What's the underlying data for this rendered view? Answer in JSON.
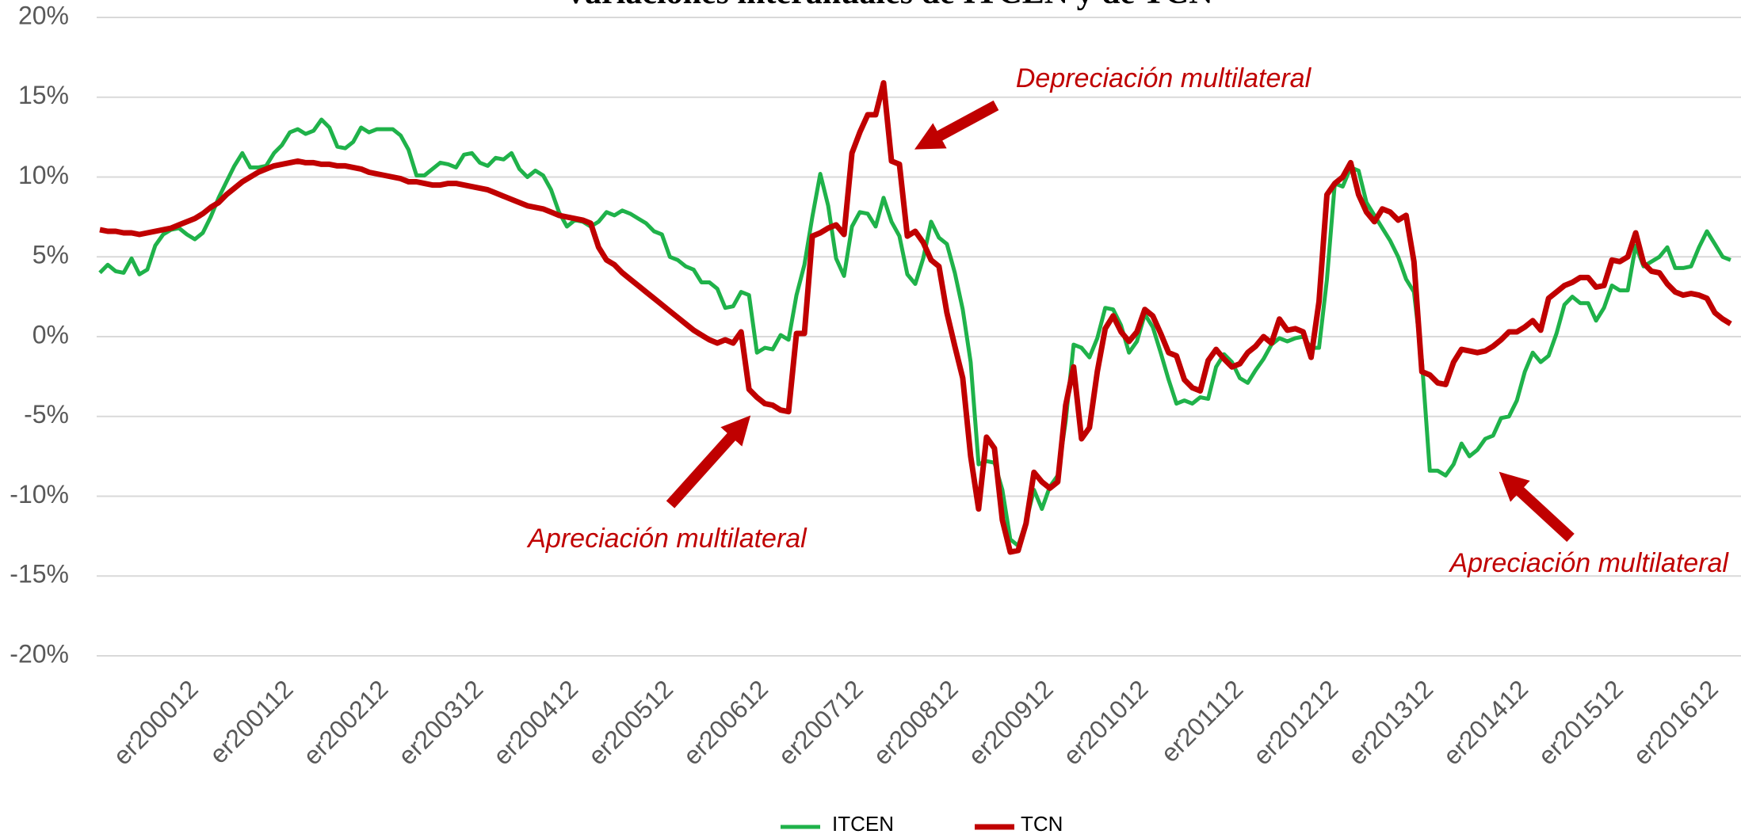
{
  "chart_data": {
    "type": "line",
    "title": "Variaciones interanuales de ITCEN y de TCN",
    "annotations": [
      "Depreciación multilateral",
      "Apreciación multilateral",
      "Apreciación multilateral"
    ],
    "categories": [
      null,
      null,
      null,
      null,
      null,
      null,
      null,
      null,
      null,
      null,
      null,
      null,
      "er200012",
      null,
      null,
      null,
      null,
      null,
      null,
      null,
      null,
      null,
      null,
      null,
      "er200112",
      null,
      null,
      null,
      null,
      null,
      null,
      null,
      null,
      null,
      null,
      null,
      "er200212",
      null,
      null,
      null,
      null,
      null,
      null,
      null,
      null,
      null,
      null,
      null,
      "er200312",
      null,
      null,
      null,
      null,
      null,
      null,
      null,
      null,
      null,
      null,
      null,
      "er200412",
      null,
      null,
      null,
      null,
      null,
      null,
      null,
      null,
      null,
      null,
      null,
      "er200512",
      null,
      null,
      null,
      null,
      null,
      null,
      null,
      null,
      null,
      null,
      null,
      "er200612",
      null,
      null,
      null,
      null,
      null,
      null,
      null,
      null,
      null,
      null,
      null,
      "er200712",
      null,
      null,
      null,
      null,
      null,
      null,
      null,
      null,
      null,
      null,
      null,
      "er200812",
      null,
      null,
      null,
      null,
      null,
      null,
      null,
      null,
      null,
      null,
      null,
      "er200912",
      null,
      null,
      null,
      null,
      null,
      null,
      null,
      null,
      null,
      null,
      null,
      "er201012",
      null,
      null,
      null,
      null,
      null,
      null,
      null,
      null,
      null,
      null,
      null,
      "er201112",
      null,
      null,
      null,
      null,
      null,
      null,
      null,
      null,
      null,
      null,
      null,
      "er201212",
      null,
      null,
      null,
      null,
      null,
      null,
      null,
      null,
      null,
      null,
      null,
      "er201312",
      null,
      null,
      null,
      null,
      null,
      null,
      null,
      null,
      null,
      null,
      null,
      "er201412",
      null,
      null,
      null,
      null,
      null,
      null,
      null,
      null,
      null,
      null,
      null,
      "er201512",
      null,
      null,
      null,
      null,
      null,
      null,
      null,
      null,
      null,
      null,
      null,
      "er201612",
      null,
      null
    ],
    "series": [
      {
        "name": "ITCEN",
        "color": "#1fb24a",
        "values": [
          4.0,
          4.5,
          4.1,
          4.0,
          4.9,
          3.9,
          4.2,
          5.7,
          6.4,
          6.7,
          6.8,
          6.4,
          6.1,
          6.5,
          7.5,
          8.7,
          9.7,
          10.7,
          11.5,
          10.6,
          10.6,
          10.7,
          11.5,
          12.0,
          12.8,
          13.0,
          12.7,
          12.9,
          13.6,
          13.1,
          11.9,
          11.8,
          12.2,
          13.1,
          12.8,
          13.0,
          13.0,
          13.0,
          12.6,
          11.7,
          10.1,
          10.1,
          10.5,
          10.9,
          10.8,
          10.6,
          11.4,
          11.5,
          10.9,
          10.7,
          11.2,
          11.1,
          11.5,
          10.5,
          10.0,
          10.4,
          10.1,
          9.2,
          7.8,
          6.9,
          7.3,
          7.2,
          6.9,
          7.2,
          7.8,
          7.6,
          7.9,
          7.7,
          7.4,
          7.1,
          6.6,
          6.4,
          5.0,
          4.8,
          4.4,
          4.2,
          3.4,
          3.4,
          3.0,
          1.8,
          1.9,
          2.8,
          2.6,
          -1.0,
          -0.7,
          -0.8,
          0.1,
          -0.2,
          2.6,
          4.5,
          7.5,
          10.2,
          8.2,
          4.9,
          3.8,
          6.9,
          7.8,
          7.7,
          6.9,
          8.7,
          7.2,
          6.3,
          3.9,
          3.3,
          4.9,
          7.2,
          6.2,
          5.8,
          4.0,
          1.7,
          -1.6,
          -8.0,
          -7.8,
          -7.9,
          -9.6,
          -12.7,
          -13.1,
          -11.6,
          -9.6,
          -10.8,
          -9.4,
          -8.7,
          -5.3,
          -0.5,
          -0.7,
          -1.3,
          -0.1,
          1.8,
          1.7,
          0.7,
          -1.0,
          -0.3,
          1.4,
          0.6,
          -1.0,
          -2.7,
          -4.2,
          -4.0,
          -4.2,
          -3.8,
          -3.9,
          -1.9,
          -1.1,
          -1.6,
          -2.6,
          -2.9,
          -2.1,
          -1.4,
          -0.5,
          -0.1,
          -0.3,
          -0.1,
          0.0,
          -0.7,
          -0.7,
          3.6,
          9.6,
          9.4,
          10.6,
          10.4,
          8.4,
          7.6,
          6.8,
          6.0,
          5.0,
          3.6,
          2.8,
          -1.5,
          -8.4,
          -8.4,
          -8.7,
          -8.0,
          -6.7,
          -7.5,
          -7.1,
          -6.4,
          -6.2,
          -5.1,
          -5.0,
          -4.0,
          -2.2,
          -1.0,
          -1.6,
          -1.2,
          0.2,
          2.0,
          2.5,
          2.1,
          2.1,
          1.0,
          1.8,
          3.2,
          2.9,
          2.9,
          5.7,
          4.4,
          4.7,
          5.0,
          5.6,
          4.3,
          4.3,
          4.4,
          5.6,
          6.6,
          5.8,
          5.0,
          4.8
        ]
      },
      {
        "name": "TCN",
        "color": "#c00000",
        "values": [
          6.7,
          6.6,
          6.6,
          6.5,
          6.5,
          6.4,
          6.5,
          6.6,
          6.7,
          6.8,
          7.0,
          7.2,
          7.4,
          7.7,
          8.1,
          8.4,
          8.9,
          9.3,
          9.7,
          10.0,
          10.3,
          10.5,
          10.7,
          10.8,
          10.9,
          11.0,
          10.9,
          10.9,
          10.8,
          10.8,
          10.7,
          10.7,
          10.6,
          10.5,
          10.3,
          10.2,
          10.1,
          10.0,
          9.9,
          9.7,
          9.7,
          9.6,
          9.5,
          9.5,
          9.6,
          9.6,
          9.5,
          9.4,
          9.3,
          9.2,
          9.0,
          8.8,
          8.6,
          8.4,
          8.2,
          8.1,
          8.0,
          7.8,
          7.6,
          7.5,
          7.4,
          7.3,
          7.1,
          5.6,
          4.8,
          4.5,
          4.0,
          3.6,
          3.2,
          2.8,
          2.4,
          2.0,
          1.6,
          1.2,
          0.8,
          0.4,
          0.1,
          -0.2,
          -0.4,
          -0.2,
          -0.4,
          0.3,
          -3.3,
          -3.8,
          -4.2,
          -4.3,
          -4.6,
          -4.7,
          0.2,
          0.2,
          6.3,
          6.5,
          6.8,
          7.0,
          6.4,
          11.5,
          12.8,
          13.9,
          13.9,
          15.9,
          11.0,
          10.8,
          6.3,
          6.6,
          5.9,
          4.8,
          4.4,
          1.5,
          -0.6,
          -2.6,
          -7.5,
          -10.8,
          -6.3,
          -7.0,
          -11.5,
          -13.5,
          -13.4,
          -11.7,
          -8.5,
          -9.1,
          -9.5,
          -9.1,
          -4.3,
          -1.9,
          -6.4,
          -5.7,
          -2.2,
          0.5,
          1.3,
          0.3,
          -0.3,
          0.3,
          1.7,
          1.3,
          0.2,
          -1.0,
          -1.2,
          -2.7,
          -3.2,
          -3.4,
          -1.5,
          -0.8,
          -1.4,
          -1.9,
          -1.7,
          -1.0,
          -0.6,
          0.0,
          -0.4,
          1.1,
          0.4,
          0.5,
          0.3,
          -1.3,
          2.2,
          8.9,
          9.6,
          10.0,
          10.9,
          8.9,
          7.8,
          7.2,
          8.0,
          7.8,
          7.3,
          7.6,
          4.7,
          -2.2,
          -2.4,
          -2.9,
          -3.0,
          -1.6,
          -0.8,
          -0.9,
          -1.0,
          -0.9,
          -0.6,
          -0.2,
          0.3,
          0.3,
          0.6,
          1.0,
          0.4,
          2.4,
          2.8,
          3.2,
          3.4,
          3.7,
          3.7,
          3.1,
          3.2,
          4.8,
          4.7,
          5.0,
          6.5,
          4.6,
          4.1,
          4.0,
          3.3,
          2.8,
          2.6,
          2.7,
          2.6,
          2.4,
          1.5,
          1.1,
          0.8
        ]
      }
    ],
    "ylim": [
      -20,
      20
    ],
    "yticks": [
      {
        "value": -20,
        "label": "-20%"
      },
      {
        "value": -15,
        "label": "-15%"
      },
      {
        "value": -10,
        "label": "-10%"
      },
      {
        "value": -5,
        "label": "-5%"
      },
      {
        "value": 0,
        "label": "0%"
      },
      {
        "value": 5,
        "label": "5%"
      },
      {
        "value": 10,
        "label": "10%"
      },
      {
        "value": 15,
        "label": "15%"
      },
      {
        "value": 20,
        "label": "20%"
      }
    ],
    "grid": true,
    "legend": "bottom"
  }
}
